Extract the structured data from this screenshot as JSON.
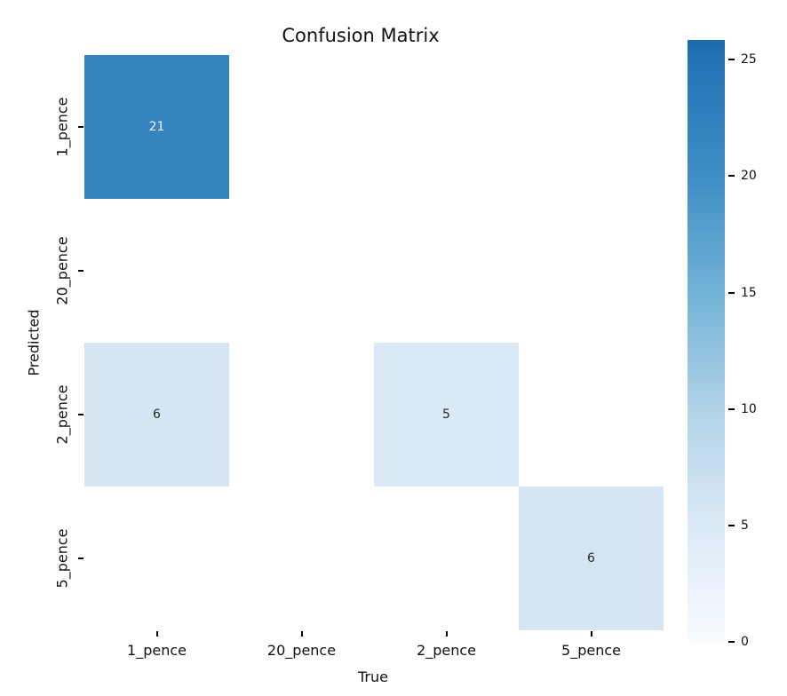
{
  "chart_data": {
    "type": "heatmap",
    "title": "Confusion Matrix",
    "xlabel": "True",
    "ylabel": "Predicted",
    "x_categories": [
      "1_pence",
      "20_pence",
      "2_pence",
      "5_pence"
    ],
    "y_categories": [
      "1_pence",
      "20_pence",
      "2_pence",
      "5_pence"
    ],
    "matrix_rows_predicted_cols_true": [
      [
        21,
        null,
        null,
        null
      ],
      [
        null,
        null,
        null,
        null
      ],
      [
        6,
        null,
        5,
        null
      ],
      [
        null,
        null,
        null,
        6
      ]
    ],
    "cells": [
      {
        "row": 0,
        "col": 0,
        "value": "21",
        "fill": "#3584bf",
        "text_color": "#eef4fb"
      },
      {
        "row": 2,
        "col": 0,
        "value": "6",
        "fill": "#d5e5f3",
        "text_color": "#262626"
      },
      {
        "row": 2,
        "col": 2,
        "value": "5",
        "fill": "#dbe9f6",
        "text_color": "#262626"
      },
      {
        "row": 3,
        "col": 3,
        "value": "6",
        "fill": "#d5e5f3",
        "text_color": "#262626"
      }
    ],
    "masked_cells_background": "#ffffff",
    "colormap": "Blues",
    "colorbar": {
      "ticks": [
        "0",
        "5",
        "10",
        "15",
        "20",
        "25"
      ],
      "tick_values": [
        0,
        5,
        10,
        15,
        20,
        25
      ],
      "vmax_top": 25.85,
      "gradient_stops": [
        {
          "value": 0,
          "color": "#f7fbff"
        },
        {
          "value": 5,
          "color": "#dbe9f6"
        },
        {
          "value": 10,
          "color": "#b0d2e7"
        },
        {
          "value": 15,
          "color": "#72b2d7"
        },
        {
          "value": 20,
          "color": "#3e8ec4"
        },
        {
          "value": 25,
          "color": "#2272b6"
        },
        {
          "value": 25.85,
          "color": "#1b6aae"
        }
      ]
    },
    "legend": null,
    "grid": false
  }
}
